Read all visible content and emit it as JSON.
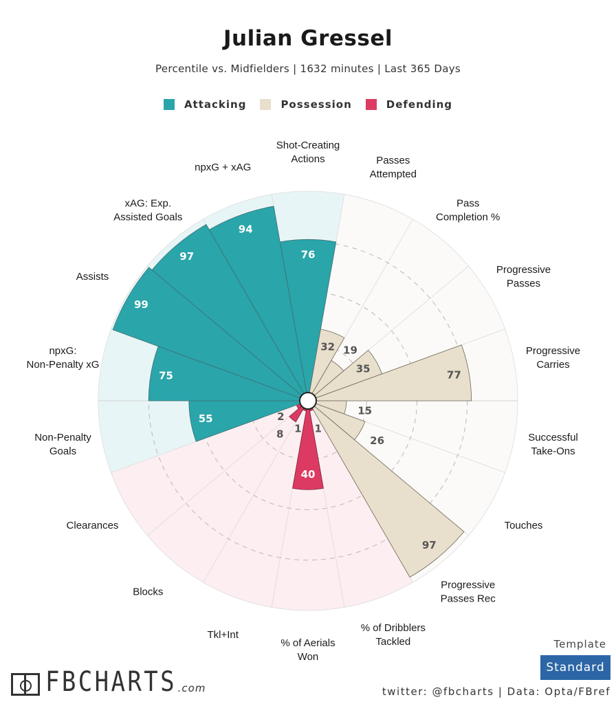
{
  "header": {
    "title": "Julian Gressel",
    "subtitle": "Percentile vs. Midfielders | 1632 minutes | Last 365 Days"
  },
  "legend": [
    {
      "label": "Attacking",
      "color": "#2aa5aa"
    },
    {
      "label": "Possession",
      "color": "#e8e0cc"
    },
    {
      "label": "Defending",
      "color": "#dc3a62"
    }
  ],
  "chart_data": {
    "type": "radar-bar",
    "range": [
      0,
      100
    ],
    "grid": true,
    "metrics": [
      {
        "label": "Shot-Creating Actions",
        "value": 76,
        "group": "Attacking"
      },
      {
        "label": "Passes Attempted",
        "value": 32,
        "group": "Possession"
      },
      {
        "label": "Pass Completion %",
        "value": 19,
        "group": "Possession"
      },
      {
        "label": "Progressive Passes",
        "value": 35,
        "group": "Possession"
      },
      {
        "label": "Progressive Carries",
        "value": 77,
        "group": "Possession"
      },
      {
        "label": "Successful Take-Ons",
        "value": 15,
        "group": "Possession"
      },
      {
        "label": "Touches",
        "value": 26,
        "group": "Possession"
      },
      {
        "label": "Progressive Passes Rec",
        "value": 97,
        "group": "Possession"
      },
      {
        "label": "% of Dribblers Tackled",
        "value": 1,
        "group": "Defending"
      },
      {
        "label": "% of Aerials Won",
        "value": 40,
        "group": "Defending"
      },
      {
        "label": "Tkl+Int",
        "value": 1,
        "group": "Defending"
      },
      {
        "label": "Blocks",
        "value": 8,
        "group": "Defending"
      },
      {
        "label": "Clearances",
        "value": 2,
        "group": "Defending"
      },
      {
        "label": "Non-Penalty Goals",
        "value": 55,
        "group": "Attacking"
      },
      {
        "label": "npxG: Non-Penalty xG",
        "value": 75,
        "group": "Attacking"
      },
      {
        "label": "Assists",
        "value": 99,
        "group": "Attacking"
      },
      {
        "label": "xAG: Exp. Assisted Goals",
        "value": 97,
        "group": "Attacking"
      },
      {
        "label": "npxG + xAG",
        "value": 94,
        "group": "Attacking"
      }
    ]
  },
  "footer": {
    "logo_text": "FBCHARTS",
    "logo_suffix": ".com",
    "template_label": "Template",
    "template_button": "Standard",
    "credits": "twitter: @fbcharts | Data: Opta/FBref"
  }
}
